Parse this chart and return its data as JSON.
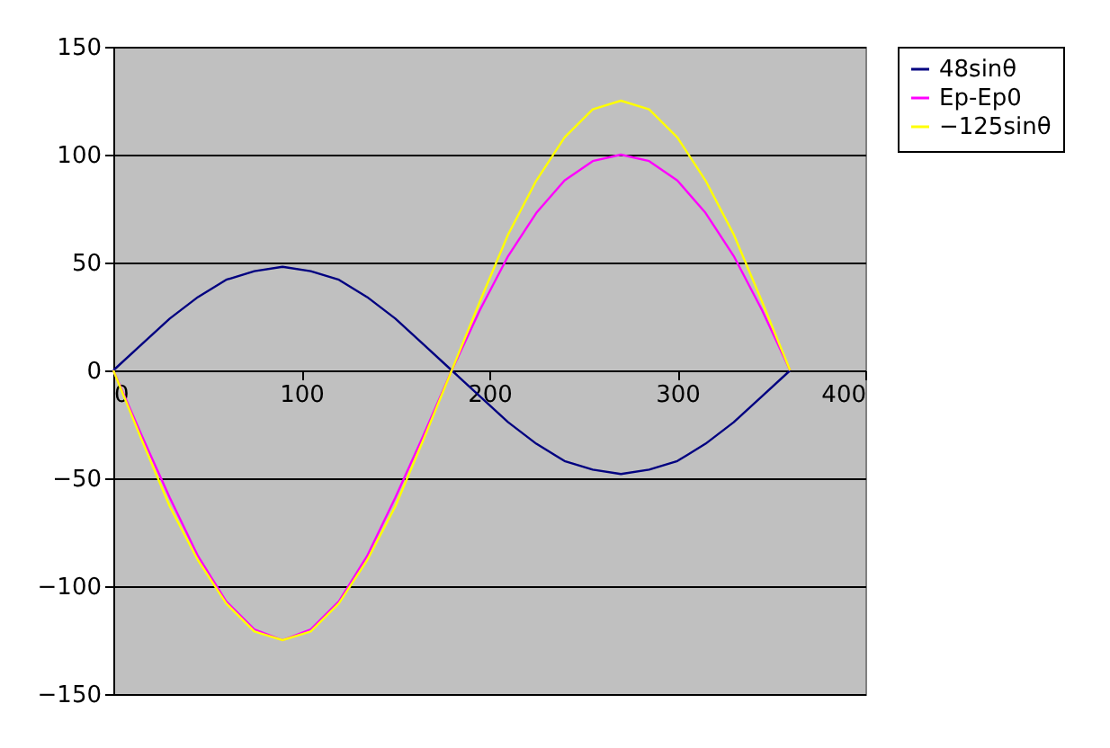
{
  "chart_data": {
    "type": "line",
    "x": [
      0,
      15,
      30,
      45,
      60,
      75,
      90,
      105,
      120,
      135,
      150,
      165,
      180,
      195,
      210,
      225,
      240,
      255,
      270,
      285,
      300,
      315,
      330,
      345,
      360
    ],
    "series": [
      {
        "name": "48sinθ",
        "color": "#000080",
        "values": [
          0,
          12,
          24,
          34,
          42,
          46,
          48,
          46,
          42,
          34,
          24,
          12,
          0,
          -12,
          -24,
          -34,
          -42,
          -46,
          -48,
          -46,
          -42,
          -34,
          -24,
          -12,
          0
        ]
      },
      {
        "name": "Ep-Ep0",
        "color": "#ff00ff",
        "values": [
          0,
          -30,
          -59,
          -86,
          -107,
          -120,
          -125,
          -120,
          -107,
          -86,
          -59,
          -30,
          0,
          28,
          53,
          73,
          88,
          97,
          100,
          97,
          88,
          73,
          53,
          28,
          0
        ]
      },
      {
        "name": "−125sinθ",
        "color": "#ffff00",
        "values": [
          0,
          -32,
          -63,
          -88,
          -108,
          -121,
          -125,
          -121,
          -108,
          -88,
          -63,
          -32,
          0,
          32,
          63,
          88,
          108,
          121,
          125,
          121,
          108,
          88,
          63,
          32,
          0
        ]
      }
    ],
    "xlim": [
      0,
      400
    ],
    "xticks": [
      0,
      100,
      200,
      300,
      400
    ],
    "ylim": [
      -150,
      150
    ],
    "yticks": [
      -150,
      -100,
      -50,
      0,
      50,
      100,
      150
    ],
    "grid": "y",
    "legend": "right",
    "marker": "none",
    "line_style": "solid"
  }
}
